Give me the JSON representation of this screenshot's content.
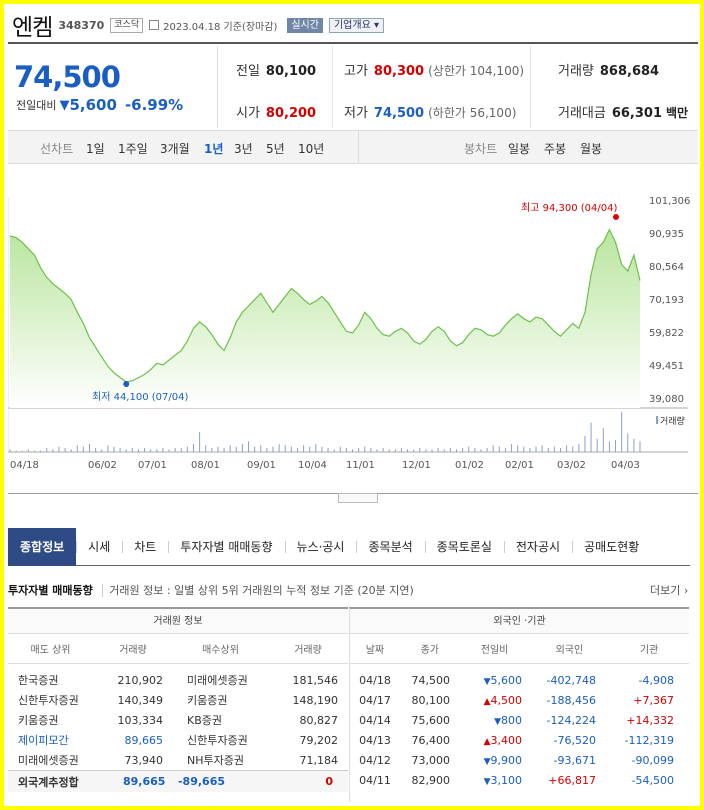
{
  "stock": {
    "name": "엔켐",
    "code": "348370",
    "market": "코스닥",
    "date": "2023.04.18 기준(장마감)",
    "realtime_label": "실시간",
    "corp_info_label": "기업개요",
    "price": "74,500",
    "change_label": "전일대비",
    "change_arrow": "▼",
    "change_value": "5,600",
    "change_pct": "-6.99%"
  },
  "stats": {
    "prev_close": {
      "label": "전일",
      "value": "80,100"
    },
    "open": {
      "label": "시가",
      "value": "80,200"
    },
    "high": {
      "label": "고가",
      "value": "80,300",
      "sub": "(상한가 104,100)"
    },
    "low": {
      "label": "저가",
      "value": "74,500",
      "sub": "(하한가 56,100)"
    },
    "volume": {
      "label": "거래량",
      "value": "868,684"
    },
    "trade_amount": {
      "label": "거래대금",
      "value": "66,301",
      "unit": "백만"
    }
  },
  "chart_tabs": {
    "line_label": "선차트",
    "periods": [
      "1일",
      "1주일",
      "3개월",
      "1년",
      "3년",
      "5년",
      "10년"
    ],
    "active_period": "1년",
    "candle_label": "봉차트",
    "candles": [
      "일봉",
      "주봉",
      "월봉"
    ]
  },
  "chart_data": {
    "type": "area",
    "y_ticks": [
      "101,306",
      "90,935",
      "80,564",
      "70,193",
      "59,822",
      "49,451",
      "39,080"
    ],
    "ylim": [
      39080,
      101306
    ],
    "x_ticks": [
      "04/18",
      "06/02",
      "07/01",
      "08/01",
      "09/01",
      "10/04",
      "11/01",
      "12/01",
      "01/02",
      "02/01",
      "03/02",
      "04/03"
    ],
    "high_label": "최고 94,300 (04/04)",
    "low_label": "최저 44,100 (07/04)",
    "volume_label": "거래량",
    "values": [
      90000,
      89500,
      88000,
      86000,
      84000,
      80000,
      77000,
      75000,
      73500,
      72000,
      70000,
      66000,
      62500,
      58000,
      55000,
      52000,
      49000,
      47000,
      45500,
      44100,
      44500,
      45500,
      46500,
      48000,
      50000,
      49500,
      51000,
      52500,
      54000,
      57000,
      61000,
      63000,
      61500,
      59000,
      56000,
      54000,
      58000,
      63000,
      66000,
      68000,
      70000,
      72000,
      69000,
      66000,
      68500,
      71000,
      73500,
      72000,
      70000,
      68500,
      69500,
      71000,
      69000,
      66000,
      63000,
      60000,
      59500,
      62000,
      66000,
      64000,
      61000,
      59000,
      58500,
      60000,
      61000,
      59500,
      57000,
      56000,
      57500,
      60000,
      61500,
      60000,
      57000,
      55500,
      56500,
      59000,
      61000,
      60500,
      59000,
      58500,
      59500,
      62000,
      64000,
      65500,
      64000,
      63000,
      64500,
      64000,
      62000,
      60000,
      58500,
      60500,
      62500,
      61000,
      66000,
      78000,
      86000,
      88000,
      92000,
      88000,
      81000,
      79000,
      84000,
      76000
    ],
    "volumes": [
      2,
      1,
      1,
      2,
      1,
      1,
      3,
      2,
      4,
      3,
      2,
      5,
      4,
      6,
      3,
      2,
      5,
      4,
      3,
      2,
      3,
      2,
      3,
      2,
      2,
      3,
      2,
      3,
      3,
      4,
      6,
      15,
      5,
      3,
      4,
      3,
      5,
      4,
      6,
      8,
      4,
      5,
      3,
      4,
      6,
      5,
      4,
      3,
      5,
      4,
      6,
      4,
      3,
      2,
      4,
      3,
      2,
      3,
      4,
      3,
      2,
      3,
      2,
      2,
      3,
      2,
      2,
      3,
      2,
      2,
      3,
      2,
      3,
      2,
      3,
      4,
      3,
      2,
      3,
      5,
      4,
      3,
      6,
      5,
      4,
      3,
      4,
      5,
      3,
      4,
      3,
      5,
      4,
      6,
      12,
      22,
      10,
      18,
      8,
      9,
      30,
      14,
      10,
      8
    ]
  },
  "nav_tabs": [
    "종합정보",
    "시세",
    "차트",
    "투자자별 매매동향",
    "뉴스·공시",
    "종목분석",
    "종목토론실",
    "전자공시",
    "공매도현황"
  ],
  "investor": {
    "title": "투자자별 매매동향",
    "desc": "거래원 정보 : 일별 상위 5위 거래원의 누적 정보 기준 (20분 지연)",
    "more": "더보기",
    "broker_caption": "거래원 정보",
    "broker_headers": [
      "매도 상위",
      "거래량",
      "매수상위",
      "거래량"
    ],
    "brokers": [
      {
        "sell": "한국증권",
        "sell_vol": "210,902",
        "buy": "미래에셋증권",
        "buy_vol": "181,546"
      },
      {
        "sell": "신한투자증권",
        "sell_vol": "140,349",
        "buy": "키움증권",
        "buy_vol": "148,190"
      },
      {
        "sell": "키움증권",
        "sell_vol": "103,334",
        "buy": "KB증권",
        "buy_vol": "80,827"
      },
      {
        "sell": "제이피모간",
        "sell_vol": "89,665",
        "buy": "신한투자증권",
        "buy_vol": "79,202"
      },
      {
        "sell": "미래에셋증권",
        "sell_vol": "73,940",
        "buy": "NH투자증권",
        "buy_vol": "71,184"
      }
    ],
    "foreign_sum": {
      "label": "외국계추정합",
      "sell_vol": "89,665",
      "buy_vol": "-89,665",
      "net": "0"
    },
    "flow_caption": "외국인 ·기관",
    "flow_headers": [
      "날짜",
      "종가",
      "전일비",
      "외국인",
      "기관"
    ],
    "flows": [
      {
        "date": "04/18",
        "close": "74,500",
        "dir": "down",
        "arrow": "▼",
        "chg": "5,600",
        "foreign": "-402,748",
        "inst": "-4,908"
      },
      {
        "date": "04/17",
        "close": "80,100",
        "dir": "up",
        "arrow": "▲",
        "chg": "4,500",
        "foreign": "-188,456",
        "inst": "+7,367"
      },
      {
        "date": "04/14",
        "close": "75,600",
        "dir": "down",
        "arrow": "▼",
        "chg": "800",
        "foreign": "-124,224",
        "inst": "+14,332"
      },
      {
        "date": "04/13",
        "close": "76,400",
        "dir": "up",
        "arrow": "▲",
        "chg": "3,400",
        "foreign": "-76,520",
        "inst": "-112,319"
      },
      {
        "date": "04/12",
        "close": "73,000",
        "dir": "down",
        "arrow": "▼",
        "chg": "9,900",
        "foreign": "-93,671",
        "inst": "-90,099"
      },
      {
        "date": "04/11",
        "close": "82,900",
        "dir": "down",
        "arrow": "▼",
        "chg": "3,100",
        "foreign": "+66,817",
        "inst": "-54,500"
      }
    ]
  },
  "colors": {
    "up": "#d40000",
    "down": "#1a5ec4",
    "line": "#6cc04a",
    "tab_active": "#2f4b86"
  }
}
